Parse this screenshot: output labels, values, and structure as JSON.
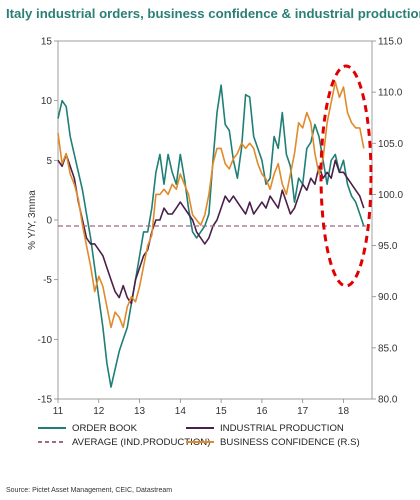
{
  "title": "Italy industrial orders, business confidence & industrial production",
  "source": "Source: Pictet Asset Management, CEIC, Datastream",
  "chart_data": {
    "type": "line",
    "ylabel": "% Y/Y, 3mma",
    "ylim": [
      -15,
      15
    ],
    "y_ticks": [
      "15",
      "10",
      "5",
      "0",
      "-5",
      "-10",
      "-15"
    ],
    "y2lim": [
      80,
      115
    ],
    "y2_ticks": [
      "115.0",
      "110.0",
      "105.0",
      "100.0",
      "95.0",
      "90.0",
      "85.0",
      "80.0"
    ],
    "xlim": [
      11,
      18.7
    ],
    "x_ticks": [
      "11",
      "12",
      "13",
      "14",
      "15",
      "16",
      "17",
      "18"
    ],
    "grid": false,
    "colors": {
      "order_book": "#1f7f76",
      "industrial_production": "#4b1f4b",
      "average": "#9a6a86",
      "business_confidence": "#e08a2a",
      "highlight": "#e00000"
    },
    "legend": [
      {
        "label": "ORDER BOOK",
        "key": "order_book"
      },
      {
        "label": "INDUSTRIAL PRODUCTION",
        "key": "industrial_production"
      },
      {
        "label": "AVERAGE (IND.PRODUCTION)",
        "key": "average"
      },
      {
        "label": "BUSINESS CONFIDENCE (R.S)",
        "key": "business_confidence"
      }
    ],
    "series": [
      {
        "key": "order_book",
        "axis": "left",
        "x": [
          11.0,
          11.1,
          11.2,
          11.3,
          11.4,
          11.5,
          11.6,
          11.7,
          11.8,
          11.9,
          12.0,
          12.1,
          12.2,
          12.3,
          12.4,
          12.5,
          12.6,
          12.7,
          12.8,
          12.9,
          13.0,
          13.1,
          13.2,
          13.3,
          13.4,
          13.5,
          13.6,
          13.7,
          13.8,
          13.9,
          14.0,
          14.1,
          14.2,
          14.3,
          14.4,
          14.5,
          14.6,
          14.7,
          14.8,
          14.9,
          15.0,
          15.1,
          15.2,
          15.3,
          15.4,
          15.5,
          15.6,
          15.7,
          15.8,
          15.9,
          16.0,
          16.1,
          16.2,
          16.3,
          16.4,
          16.5,
          16.6,
          16.7,
          16.8,
          16.9,
          17.0,
          17.1,
          17.2,
          17.3,
          17.4,
          17.5,
          17.6,
          17.7,
          17.8,
          17.9,
          18.0,
          18.1,
          18.2,
          18.3,
          18.4,
          18.5
        ],
        "y": [
          8.5,
          10,
          9.5,
          7,
          5.5,
          4,
          2.5,
          0.5,
          -1.5,
          -4,
          -6.5,
          -9,
          -12,
          -14,
          -12.5,
          -11,
          -10,
          -9,
          -7,
          -5,
          -3,
          -1,
          -1,
          1,
          4,
          5.5,
          3,
          5.5,
          4,
          3,
          5.5,
          3.5,
          1,
          -1,
          -1.5,
          -1,
          -0.5,
          0.5,
          5,
          9,
          11.3,
          8,
          7.5,
          5,
          3.5,
          6,
          10.5,
          10.3,
          7,
          6,
          5,
          3,
          3.5,
          7,
          6,
          9,
          5.5,
          4.5,
          1.5,
          3.5,
          3,
          6,
          6.5,
          8,
          7,
          5,
          3,
          5,
          5.5,
          4,
          5,
          3,
          2,
          1.5,
          0.5,
          -0.5
        ]
      },
      {
        "key": "industrial_production",
        "axis": "left",
        "x": [
          11.0,
          11.1,
          11.2,
          11.3,
          11.4,
          11.5,
          11.6,
          11.7,
          11.8,
          11.9,
          12.0,
          12.1,
          12.2,
          12.3,
          12.4,
          12.5,
          12.6,
          12.7,
          12.8,
          12.9,
          13.0,
          13.1,
          13.2,
          13.3,
          13.4,
          13.5,
          13.6,
          13.7,
          13.8,
          13.9,
          14.0,
          14.1,
          14.2,
          14.3,
          14.4,
          14.5,
          14.6,
          14.7,
          14.8,
          14.9,
          15.0,
          15.1,
          15.2,
          15.3,
          15.4,
          15.5,
          15.6,
          15.7,
          15.8,
          15.9,
          16.0,
          16.1,
          16.2,
          16.3,
          16.4,
          16.5,
          16.6,
          16.7,
          16.8,
          16.9,
          17.0,
          17.1,
          17.2,
          17.3,
          17.4,
          17.5,
          17.6,
          17.7,
          17.8,
          17.9,
          18.0,
          18.1,
          18.2,
          18.3,
          18.4,
          18.5
        ],
        "y": [
          5,
          4.5,
          5.5,
          4.5,
          3.5,
          1.5,
          0,
          -1.5,
          -2,
          -2,
          -2.5,
          -3,
          -4,
          -5,
          -6,
          -6.5,
          -5.5,
          -6.5,
          -7,
          -5,
          -4,
          -3,
          -2.5,
          -1,
          0,
          0,
          1,
          0.5,
          0.5,
          1,
          1.5,
          1,
          0.5,
          0,
          -1,
          -1.5,
          -2,
          -1.5,
          -0.5,
          0,
          1,
          2,
          1.5,
          2,
          1.5,
          1,
          0.5,
          1.5,
          0.5,
          1,
          1.5,
          1,
          2,
          1.5,
          1,
          2.5,
          1.5,
          0.5,
          1,
          2,
          3,
          2.5,
          3.5,
          3,
          4.5,
          3.5,
          4,
          3.5,
          5,
          4,
          4,
          3.5,
          3,
          2.5,
          2,
          1
        ]
      },
      {
        "key": "average",
        "axis": "left",
        "x": [
          11,
          18.55
        ],
        "y": [
          -0.5,
          -0.5
        ]
      },
      {
        "key": "business_confidence",
        "axis": "right",
        "x": [
          11.0,
          11.1,
          11.2,
          11.3,
          11.4,
          11.5,
          11.6,
          11.7,
          11.8,
          11.9,
          12.0,
          12.1,
          12.2,
          12.3,
          12.4,
          12.5,
          12.6,
          12.7,
          12.8,
          12.9,
          13.0,
          13.1,
          13.2,
          13.3,
          13.4,
          13.5,
          13.6,
          13.7,
          13.8,
          13.9,
          14.0,
          14.1,
          14.2,
          14.3,
          14.4,
          14.5,
          14.6,
          14.7,
          14.8,
          14.9,
          15.0,
          15.1,
          15.2,
          15.3,
          15.4,
          15.5,
          15.6,
          15.7,
          15.8,
          15.9,
          16.0,
          16.1,
          16.2,
          16.3,
          16.4,
          16.5,
          16.6,
          16.7,
          16.8,
          16.9,
          17.0,
          17.1,
          17.2,
          17.3,
          17.4,
          17.5,
          17.6,
          17.7,
          17.8,
          17.9,
          18.0,
          18.1,
          18.2,
          18.3,
          18.4,
          18.5
        ],
        "y": [
          106,
          103,
          104,
          102,
          101,
          99.5,
          97,
          95,
          93,
          90.5,
          92,
          91,
          89,
          87,
          88.5,
          88,
          87,
          89,
          90,
          89.5,
          91,
          93,
          95,
          96,
          100,
          100,
          100.5,
          100,
          101,
          100.5,
          102,
          101,
          100,
          98,
          97.5,
          97,
          98,
          100,
          103,
          104.5,
          104.5,
          103,
          102.5,
          103.5,
          104,
          105,
          104.5,
          105,
          104.5,
          103,
          102,
          101.5,
          100.5,
          102,
          103,
          101,
          100,
          102,
          104,
          107,
          106.5,
          108,
          107,
          104,
          102,
          103.5,
          107,
          109,
          111,
          109.5,
          110.5,
          108,
          107,
          106.5,
          106.5,
          104.5
        ]
      }
    ]
  }
}
